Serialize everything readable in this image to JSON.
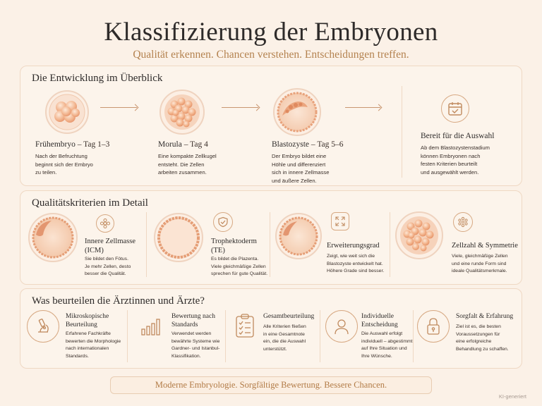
{
  "header": {
    "title": "Klassifizierung der Embryonen",
    "subtitle": "Qualität erkennen. Chancen verstehen. Entscheidungen treffen."
  },
  "development": {
    "title": "Die Entwicklung im Überblick",
    "stages": [
      {
        "name": "Frühembryo",
        "day": " – Tag 1–3",
        "desc": [
          "Nach der Befruchtung",
          "beginnt sich der Embryo",
          "zu teilen."
        ]
      },
      {
        "name": "Morula",
        "day": " – Tag 4",
        "desc": [
          "Eine kompakte Zellkugel",
          "entsteht. Die Zellen",
          "arbeiten zusammen."
        ]
      },
      {
        "name": "Blastozyste",
        "day": " – Tag 5–6",
        "desc": [
          "Der Embryo bildet eine",
          "Höhle und differenziert",
          "sich in innere Zellmasse",
          "und äußere Zellen."
        ]
      }
    ],
    "ready": {
      "name": "Bereit für die Auswahl",
      "desc": [
        "Ab dem Blastozystenstadium",
        "können Embryonen nach",
        "festen Kriterien beurteilt",
        "und ausgewählt werden."
      ],
      "icon": "calendar-check-icon"
    }
  },
  "criteria": {
    "title": "Qualitätskriterien im Detail",
    "items": [
      {
        "name": [
          "Innere Zellmasse",
          "(ICM)"
        ],
        "desc": [
          "Sie bildet den Fötus.",
          "Je mehr Zellen, desto",
          "besser die Qualität."
        ],
        "icon": "flower-cells-icon"
      },
      {
        "name": [
          "Trophektoderm",
          "(TE)"
        ],
        "desc": [
          "Es bildet die Plazenta.",
          "Viele gleichmäßige Zellen",
          "sprechen für gute Qualität."
        ],
        "icon": "shield-check-icon"
      },
      {
        "name": [
          "Erweiterungsgrad"
        ],
        "desc": [
          "Zeigt, wie weit sich die",
          "Blastozyste entwickelt hat.",
          "Höhere Grade sind besser."
        ],
        "icon": "expand-arrows-icon"
      },
      {
        "name": [
          "Zellzahl & Symmetrie"
        ],
        "desc": [
          "Viele, gleichmäßige Zellen",
          "und eine runde Form sind",
          "ideale Qualitätsmerkmale."
        ],
        "icon": "dots-circle-icon"
      }
    ]
  },
  "evaluation": {
    "title": "Was beurteilen die Ärztinnen und Ärzte?",
    "items": [
      {
        "name": [
          "Mikroskopische",
          "Beurteilung"
        ],
        "desc": [
          "Erfahrene Fachkräfte",
          "bewerten die Morphologie",
          "nach internationalen",
          "Standards."
        ],
        "icon": "microscope-icon"
      },
      {
        "name": [
          "Bewertung nach",
          "Standards"
        ],
        "desc": [
          "Verwendet werden",
          "bewährte Systeme wie",
          "Gardner- und Istanbul-",
          "Klassifikation."
        ],
        "icon": "bar-chart-icon"
      },
      {
        "name": [
          "Gesamtbeurteilung"
        ],
        "desc": [
          "Alle Kriterien fließen",
          "in eine Gesamtnote",
          "ein, die die Auswahl",
          "unterstützt."
        ],
        "icon": "clipboard-check-icon"
      },
      {
        "name": [
          "Individuelle",
          "Entscheidung"
        ],
        "desc": [
          "Die Auswahl erfolgt",
          "individuell – abgestimmt",
          "auf Ihre Situation und",
          "Ihre Wünsche."
        ],
        "icon": "person-icon"
      },
      {
        "name": [
          "Sorgfalt & Erfahrung"
        ],
        "desc": [
          "Ziel ist es, die besten",
          "Voraussetzungen für",
          "eine erfolgreiche",
          "Behandlung zu schaffen."
        ],
        "icon": "lock-icon"
      }
    ]
  },
  "footer": "Moderne Embryologie. Sorgfältige Bewertung. Bessere Chancen.",
  "watermark": "KI-generiert",
  "colors": {
    "background": "#fbf1e7",
    "accent": "#b4824f",
    "embryo": "#f3bc98",
    "border": "#efd8c3"
  }
}
